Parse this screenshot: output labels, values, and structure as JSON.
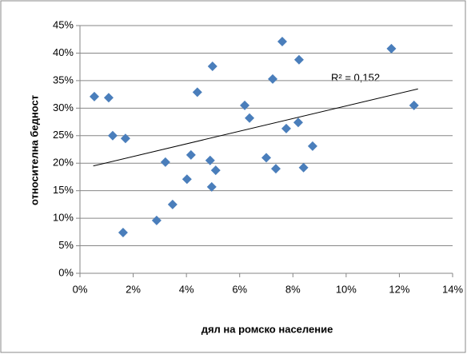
{
  "chart_data": {
    "type": "scatter",
    "x_label": "дял на ромско население",
    "y_label": "относителна бедност",
    "annotation": "R² = 0,152",
    "series": [
      {
        "color": "#4a7ebb",
        "x": [
          0.54,
          1.08,
          1.23,
          1.71,
          1.62,
          2.88,
          3.21,
          3.48,
          4.02,
          4.17,
          4.41,
          4.89,
          4.98,
          4.95,
          5.1,
          6.19,
          6.37,
          7.0,
          7.24,
          7.36,
          7.6,
          7.75,
          8.2,
          8.23,
          8.4,
          8.74,
          11.7,
          12.55
        ],
        "values": [
          32.1,
          31.9,
          25.0,
          24.5,
          7.4,
          9.6,
          20.2,
          12.5,
          17.1,
          21.5,
          32.9,
          20.5,
          37.6,
          15.7,
          18.7,
          30.5,
          28.2,
          21.0,
          35.3,
          19.0,
          42.1,
          26.3,
          27.4,
          38.8,
          19.2,
          23.1,
          40.8,
          30.5
        ]
      }
    ],
    "trendline": {
      "x": [
        0.5,
        12.7
      ],
      "values": [
        19.5,
        33.5
      ]
    },
    "xlim": [
      0,
      14
    ],
    "xticks": [
      {
        "value": 0,
        "label": "0%"
      },
      {
        "value": 2,
        "label": "2%"
      },
      {
        "value": 4,
        "label": "4%"
      },
      {
        "value": 6,
        "label": "6%"
      },
      {
        "value": 8,
        "label": "8%"
      },
      {
        "value": 10,
        "label": "10%"
      },
      {
        "value": 12,
        "label": "12%"
      },
      {
        "value": 14,
        "label": "14%"
      }
    ],
    "ylim": [
      0,
      45
    ],
    "yticks": [
      {
        "value": 0,
        "label": "0%"
      },
      {
        "value": 5,
        "label": "5%"
      },
      {
        "value": 10,
        "label": "10%"
      },
      {
        "value": 15,
        "label": "15%"
      },
      {
        "value": 20,
        "label": "20%"
      },
      {
        "value": 25,
        "label": "25%"
      },
      {
        "value": 30,
        "label": "30%"
      },
      {
        "value": 35,
        "label": "35%"
      },
      {
        "value": 40,
        "label": "40%"
      },
      {
        "value": 45,
        "label": "45%"
      }
    ],
    "grid": true
  }
}
